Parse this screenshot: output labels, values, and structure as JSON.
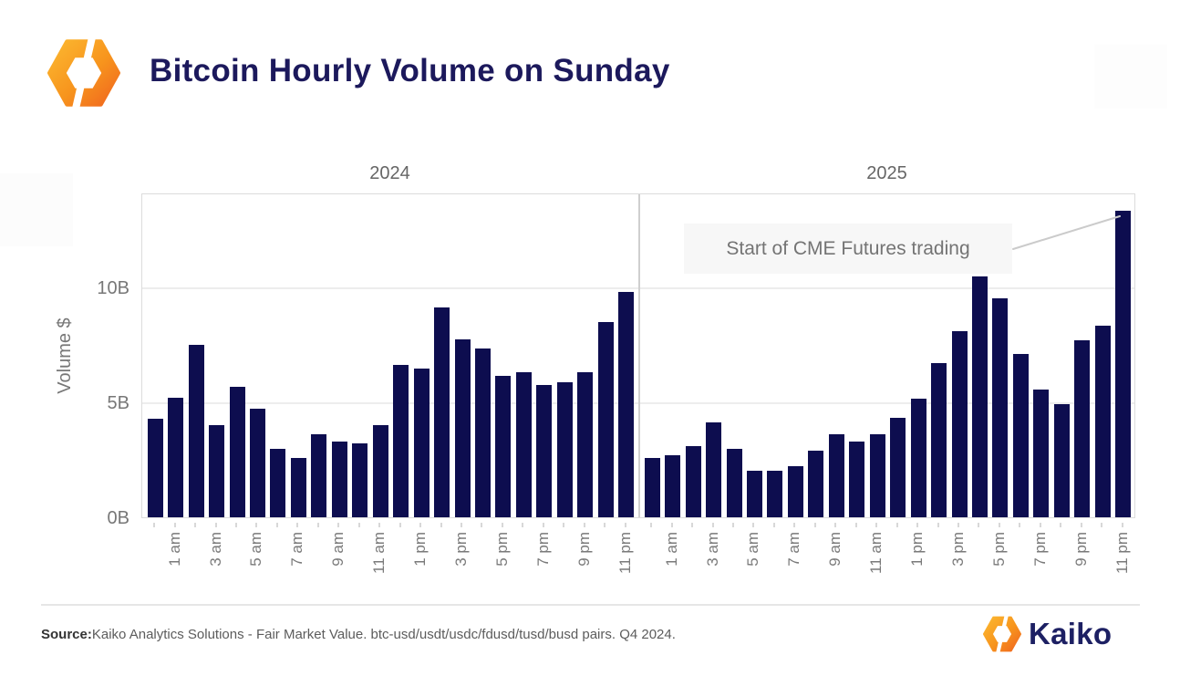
{
  "header": {
    "title": "Bitcoin Hourly Volume on Sunday"
  },
  "chart_data": {
    "type": "bar",
    "title": "Bitcoin Hourly Volume on Sunday",
    "ylabel": "Volume $",
    "xlabel": "",
    "y_ticks": [
      "0B",
      "5B",
      "10B"
    ],
    "y_tick_values": [
      0,
      5,
      10
    ],
    "ylim": [
      0,
      14.13
    ],
    "grid": true,
    "legend": "none",
    "bar_color": "#0d0d4f",
    "bars_per_facet": 24,
    "x_tick_labels": [
      "1 am",
      "3 am",
      "5 am",
      "7 am",
      "9 am",
      "11 am",
      "1 pm",
      "3 pm",
      "5 pm",
      "7 pm",
      "9 pm",
      "11 pm"
    ],
    "facets": [
      {
        "label": "2024",
        "values": [
          4.3,
          5.25,
          7.55,
          4.05,
          5.7,
          4.75,
          3.0,
          2.6,
          3.65,
          3.3,
          3.25,
          4.05,
          6.65,
          6.5,
          9.2,
          7.8,
          7.4,
          6.2,
          6.35,
          5.8,
          5.9,
          6.35,
          8.55,
          9.85
        ]
      },
      {
        "label": "2025",
        "values": [
          2.6,
          2.7,
          3.1,
          4.15,
          3.0,
          2.05,
          2.05,
          2.25,
          2.9,
          3.65,
          3.3,
          3.65,
          4.35,
          5.2,
          6.75,
          8.15,
          10.55,
          9.6,
          7.15,
          5.6,
          4.95,
          7.75,
          8.4,
          13.4
        ]
      }
    ],
    "annotation": {
      "text": "Start of CME Futures trading"
    }
  },
  "footer": {
    "source_label": "Source:",
    "source_text": "Kaiko Analytics Solutions - Fair Market Value. btc-usd/usdt/usdc/fdusd/tusd/busd pairs. Q4 2024.",
    "brand": "Kaiko"
  },
  "colors": {
    "accent_orange": "#F7941D",
    "navy": "#1d2063",
    "bar": "#0d0d4f"
  }
}
